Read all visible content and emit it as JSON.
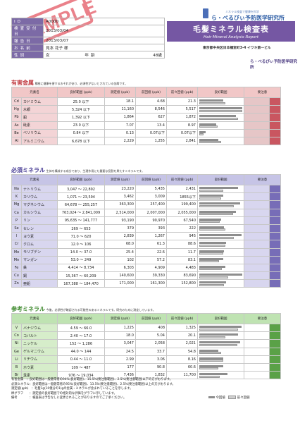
{
  "stamp": "SAMPLE",
  "info": [
    {
      "label": "ID",
      "value": "A0000"
    },
    {
      "label": "検査受付日",
      "value": "2013/03/04"
    },
    {
      "label": "報告日",
      "value": "2013/03/07"
    },
    {
      "label": "お名前",
      "value": "見本 花子 様"
    },
    {
      "label": "性別",
      "value": "女"
    },
    {
      "label": "年齢",
      "value": "48歳"
    }
  ],
  "logo": {
    "line": "ミネラル検査で健康を科学",
    "name": "ら・べるびぃ予防医学研究所",
    "badge_color": "#4c6fb8"
  },
  "title": {
    "jp": "毛髪ミネラル検査表",
    "en": "Hair Mineral Analysis Report"
  },
  "address": "東京都中央区日本橋室町3-4 イワキ第一ビル",
  "lab_name": "ら・べるびぃ予防医学研究所",
  "headers": {
    "name": "元素名",
    "range": "良好範囲 (ppb)",
    "measured": "測定値 (ppb)",
    "prev": "前回値 (ppb)",
    "prev2": "前々回値 (ppb)",
    "good": "良好範囲",
    "caution": "要注意",
    "warn": "要注意"
  },
  "sections": [
    {
      "id": "harm",
      "title": "有害金属",
      "desc": "積極に健康を害するおそれがあり、必須性がないとされている金属です。",
      "title_color": "#c0393f",
      "rows": [
        {
          "sym": "Cd",
          "name": "カドミウム",
          "range": "25.0 以下",
          "v1": "18.1",
          "v2": "4.68",
          "v3": "21.3",
          "b1": 0.55,
          "b2": 0.6
        },
        {
          "sym": "Hg",
          "name": "水銀",
          "range": "5,324 以下",
          "v1": "11,160",
          "v2": "8,546",
          "v3": "5,517",
          "b1": 1.0,
          "b2": 1.0
        },
        {
          "sym": "Pb",
          "name": "鉛",
          "range": "1,392 以下",
          "v1": "1,864",
          "v2": "627",
          "v3": "1,872",
          "b1": 0.85,
          "b2": 0.9
        },
        {
          "sym": "As",
          "name": "砒素",
          "range": "23.0 以下",
          "v1": "7.07",
          "v2": "13.4",
          "v3": "8.97",
          "b1": 0.4,
          "b2": 0.42
        },
        {
          "sym": "Be",
          "name": "ベリリウム",
          "range": "0.84 以下",
          "v1": "0.13",
          "v2": "0.07以下",
          "v3": "0.07以下",
          "b1": 0.15,
          "b2": 0.1
        },
        {
          "sym": "Al",
          "name": "アルミニウム",
          "range": "6,678 以下",
          "v1": "2,229",
          "v2": "1,255",
          "v3": "2,841",
          "b1": 0.45,
          "b2": 0.5
        }
      ]
    },
    {
      "id": "need",
      "title": "必須ミネラル",
      "desc": "生体を構成する成分であり、生理作用にも重要な役割を果たすミネラルです。",
      "title_color": "#4a3f96",
      "rows": [
        {
          "sym": "Na",
          "name": "ナトリウム",
          "range": "3,047 〜 22,892",
          "v1": "23,220",
          "v2": "5,435",
          "v3": "2,431",
          "b1": 0.9,
          "b2": 0.55
        },
        {
          "sym": "K",
          "name": "カリウム",
          "range": "1,071 〜 23,594",
          "v1": "3,462",
          "v2": "3,009",
          "v3": "1855以下",
          "b1": 0.55,
          "b2": 0.5
        },
        {
          "sym": "Mg",
          "name": "マグネシウム",
          "range": "64,678 〜 255,257",
          "v1": "363,300",
          "v2": "257,400",
          "v3": "199,400",
          "b1": 0.95,
          "b2": 0.8
        },
        {
          "sym": "Ca",
          "name": "カルシウム",
          "range": "763,024 〜 2,841,009",
          "v1": "2,514,000",
          "v2": "2,007,000",
          "v3": "2,055,000",
          "b1": 0.85,
          "b2": 0.78
        },
        {
          "sym": "P",
          "name": "リン",
          "range": "95,635 〜 141,777",
          "v1": "93,190",
          "v2": "90,970",
          "v3": "67,540",
          "b1": 0.5,
          "b2": 0.48
        },
        {
          "sym": "Se",
          "name": "セレン",
          "range": "269 〜 653",
          "v1": "379",
          "v2": "393",
          "v3": "222",
          "b1": 0.58,
          "b2": 0.6
        },
        {
          "sym": "I",
          "name": "ヨウ素",
          "range": "71.0 〜 620",
          "v1": "2,839",
          "v2": "1,267",
          "v3": "945",
          "b1": 0.98,
          "b2": 0.8
        },
        {
          "sym": "Cr",
          "name": "クロム",
          "range": "12.0 〜 106",
          "v1": "68.0",
          "v2": "61.3",
          "v3": "88.6",
          "b1": 0.62,
          "b2": 0.6
        },
        {
          "sym": "Mo",
          "name": "モリブデン",
          "range": "14.0 〜 37.0",
          "v1": "25.4",
          "v2": "22.6",
          "v3": "11.7",
          "b1": 0.58,
          "b2": 0.55
        },
        {
          "sym": "Mn",
          "name": "マンガン",
          "range": "53.0 〜 249",
          "v1": "102",
          "v2": "57.2",
          "v3": "83.1",
          "b1": 0.56,
          "b2": 0.46
        },
        {
          "sym": "Fe",
          "name": "鉄",
          "range": "4,414 〜 8,734",
          "v1": "6,303",
          "v2": "4,909",
          "v3": "4,483",
          "b1": 0.6,
          "b2": 0.52
        },
        {
          "sym": "Cu",
          "name": "銅",
          "range": "15,367 〜 60,209",
          "v1": "140,600",
          "v2": "39,330",
          "v3": "83,690",
          "b1": 1.0,
          "b2": 0.68
        },
        {
          "sym": "Zn",
          "name": "亜鉛",
          "range": "167,388 〜 184,470",
          "v1": "171,000",
          "v2": "161,300",
          "v3": "152,800",
          "b1": 0.62,
          "b2": 0.58
        }
      ]
    },
    {
      "id": "ref",
      "title": "参考ミネラル",
      "desc": "今後、必須性が確認される可能性のあるミネラルです。研究のために測定しています。",
      "title_color": "#3f8a2e",
      "rows": [
        {
          "sym": "V",
          "name": "バナジウム",
          "range": "4.59 〜 66.0",
          "v1": "1,225",
          "v2": "408",
          "v3": "1,325",
          "b1": 0.98,
          "b2": 0.9
        },
        {
          "sym": "Co",
          "name": "コバルト",
          "range": "2.40 〜 17.0",
          "v1": "18.0",
          "v2": "5.04",
          "v3": "20.1",
          "b1": 0.9,
          "b2": 0.6
        },
        {
          "sym": "Ni",
          "name": "ニッケル",
          "range": "152 〜 1,286",
          "v1": "3,047",
          "v2": "2,058",
          "v3": "2,021",
          "b1": 0.95,
          "b2": 0.88
        },
        {
          "sym": "Ge",
          "name": "ゲルマニウム",
          "range": "44.0 〜 144",
          "v1": "24.5",
          "v2": "33.7",
          "v3": "54.8",
          "b1": 0.45,
          "b2": 0.5
        },
        {
          "sym": "Li",
          "name": "リチウム",
          "range": "0.44 〜 11.0",
          "v1": "2.99",
          "v2": "3.06",
          "v3": "8.16",
          "b1": 0.55,
          "b2": 0.56
        },
        {
          "sym": "B",
          "name": "ホウ素",
          "range": "109 〜 487",
          "v1": "177",
          "v2": "90.8",
          "v3": "60.6",
          "b1": 0.55,
          "b2": 0.44
        },
        {
          "sym": "Br",
          "name": "臭素",
          "range": "976 〜 19,034",
          "v1": "7,436",
          "v2": "1,832",
          "v3": "11,700",
          "b1": 0.65,
          "b2": 0.48
        }
      ]
    }
  ],
  "notes": [
    "有害金属　：良好範囲は一般健常者の94%(良好範囲）、15.5%(要注意範囲)、2.5%(要注意範囲)以下の方がおります。",
    "必須ミネラル：良好範囲は一般健常者の95%(良好範囲)、13.5%(要注意範囲)、2.5%(要注意範囲)以上の方がおります。",
    "測定値(ppb)　：毛髪1g(10億分の1)gの金属・ミネラルが含まれていることを示します。",
    "棒グラフ　　：測定値の良好範囲での相対的な評価をグラフに示しています。",
    "備考　　　　：検査表は予告なしに変更されることがありますのでご了承ください。"
  ],
  "legend": {
    "prev": "今回値",
    "prev2": "前々回値"
  }
}
